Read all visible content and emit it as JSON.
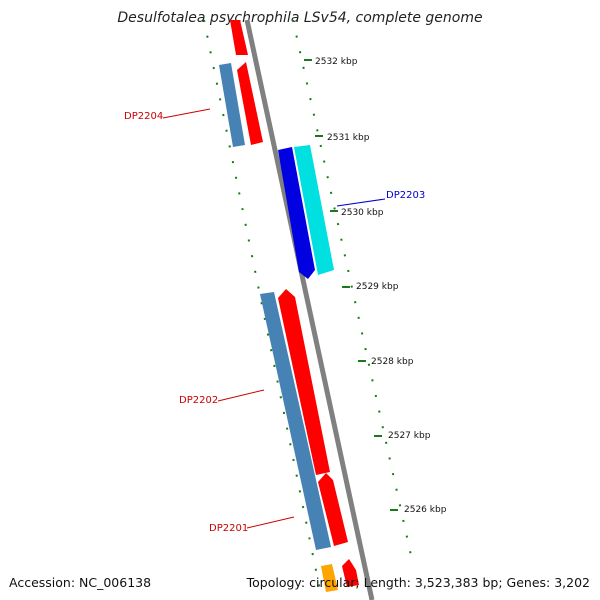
{
  "title": "Desulfotalea psychrophila LSv54, complete genome",
  "footer": {
    "accession": "Accession: NC_006138",
    "summary": "Topology: circular; Length: 3,523,383 bp; Genes: 3,202"
  },
  "ticks": [
    "2532 kbp",
    "2531 kbp",
    "2530 kbp",
    "2529 kbp",
    "2528 kbp",
    "2527 kbp",
    "2526 kbp"
  ],
  "gene_labels": [
    {
      "text": "DP2204",
      "color": "#cc0000"
    },
    {
      "text": "DP2203",
      "color": "#0000cc"
    },
    {
      "text": "DP2202",
      "color": "#cc0000"
    },
    {
      "text": "DP2201",
      "color": "#cc0000"
    }
  ],
  "colors": {
    "backbone": "#808080",
    "tick_marks": "#1a7a1a",
    "gene_red": "#ff0000",
    "gene_steelblue": "#4682b4",
    "gene_blue": "#0000e0",
    "gene_cyan": "#00e0e0",
    "gene_orange": "#ffa500"
  }
}
